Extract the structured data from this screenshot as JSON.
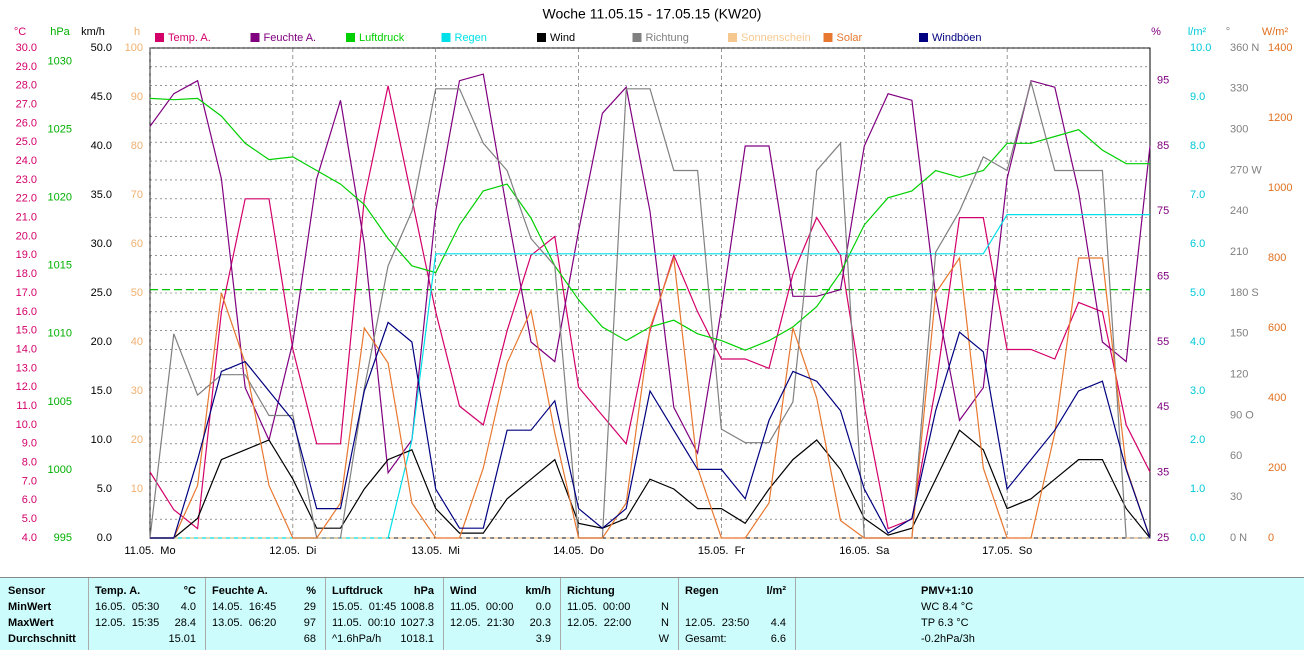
{
  "chart_data": {
    "type": "line",
    "title": "Woche 11.05.15 - 17.05.15 (KW20)",
    "xlim": [
      0,
      168
    ],
    "xticks": [
      {
        "value": 0,
        "label": "11.05.  Mo"
      },
      {
        "value": 24,
        "label": "12.05.  Di"
      },
      {
        "value": 48,
        "label": "13.05.  Mi"
      },
      {
        "value": 72,
        "label": "14.05.  Do"
      },
      {
        "value": 96,
        "label": "15.05.  Fr"
      },
      {
        "value": 120,
        "label": "16.05.  Sa"
      },
      {
        "value": 144,
        "label": "17.05.  So"
      }
    ],
    "x": [
      0,
      4,
      8,
      12,
      16,
      20,
      24,
      28,
      32,
      36,
      40,
      44,
      48,
      52,
      56,
      60,
      64,
      68,
      72,
      76,
      80,
      84,
      88,
      92,
      96,
      100,
      104,
      108,
      112,
      116,
      120,
      124,
      128,
      132,
      136,
      140,
      144,
      148,
      152,
      156,
      160,
      164,
      168
    ],
    "axes": [
      {
        "unit": "°C",
        "color": "#d4006a",
        "lim": [
          4,
          30
        ],
        "ticks": [
          {
            "value": 4,
            "label": "4.0"
          },
          {
            "value": 5,
            "label": "5.0"
          },
          {
            "value": 6,
            "label": "6.0"
          },
          {
            "value": 7,
            "label": "7.0"
          },
          {
            "value": 8,
            "label": "8.0"
          },
          {
            "value": 9,
            "label": "9.0"
          },
          {
            "value": 10,
            "label": "10.0"
          },
          {
            "value": 11,
            "label": "11.0"
          },
          {
            "value": 12,
            "label": "12.0"
          },
          {
            "value": 13,
            "label": "13.0"
          },
          {
            "value": 14,
            "label": "14.0"
          },
          {
            "value": 15,
            "label": "15.0"
          },
          {
            "value": 16,
            "label": "16.0"
          },
          {
            "value": 17,
            "label": "17.0"
          },
          {
            "value": 18,
            "label": "18.0"
          },
          {
            "value": 19,
            "label": "19.0"
          },
          {
            "value": 20,
            "label": "20.0"
          },
          {
            "value": 21,
            "label": "21.0"
          },
          {
            "value": 22,
            "label": "22.0"
          },
          {
            "value": 23,
            "label": "23.0"
          },
          {
            "value": 24,
            "label": "24.0"
          },
          {
            "value": 25,
            "label": "25.0"
          },
          {
            "value": 26,
            "label": "26.0"
          },
          {
            "value": 27,
            "label": "27.0"
          },
          {
            "value": 28,
            "label": "28.0"
          },
          {
            "value": 29,
            "label": "29.0"
          },
          {
            "value": 30,
            "label": "30.0"
          }
        ]
      },
      {
        "unit": "hPa",
        "color": "#00b000",
        "lim": [
          995,
          1031
        ],
        "ticks": [
          995,
          1000,
          1005,
          1010,
          1015,
          1020,
          1025,
          1030
        ]
      },
      {
        "unit": "km/h",
        "color": "#000000",
        "lim": [
          0,
          50
        ],
        "ticks": [
          {
            "value": 0,
            "label": "0.0"
          },
          {
            "value": 5,
            "label": "5.0"
          },
          {
            "value": 10,
            "label": "10.0"
          },
          {
            "value": 15,
            "label": "15.0"
          },
          {
            "value": 20,
            "label": "20.0"
          },
          {
            "value": 25,
            "label": "25.0"
          },
          {
            "value": 30,
            "label": "30.0"
          },
          {
            "value": 35,
            "label": "35.0"
          },
          {
            "value": 40,
            "label": "40.0"
          },
          {
            "value": 45,
            "label": "45.0"
          },
          {
            "value": 50,
            "label": "50.0"
          }
        ]
      },
      {
        "unit": "h",
        "color": "#f0b070",
        "lim": [
          0,
          100
        ],
        "ticks": [
          10,
          20,
          30,
          40,
          50,
          60,
          70,
          80,
          90,
          100
        ]
      },
      {
        "unit": "%",
        "color": "#800080",
        "lim": [
          25,
          100
        ],
        "ticks": [
          25,
          35,
          45,
          55,
          65,
          75,
          85,
          95
        ]
      },
      {
        "unit": "l/m²",
        "color": "#00c8d8",
        "lim": [
          0,
          10
        ],
        "ticks": [
          {
            "value": 0,
            "label": "0.0"
          },
          {
            "value": 1,
            "label": "1.0"
          },
          {
            "value": 2,
            "label": "2.0"
          },
          {
            "value": 3,
            "label": "3.0"
          },
          {
            "value": 4,
            "label": "4.0"
          },
          {
            "value": 5,
            "label": "5.0"
          },
          {
            "value": 6,
            "label": "6.0"
          },
          {
            "value": 7,
            "label": "7.0"
          },
          {
            "value": 8,
            "label": "8.0"
          },
          {
            "value": 9,
            "label": "9.0"
          },
          {
            "value": 10,
            "label": "10.0"
          }
        ]
      },
      {
        "unit": "°",
        "color": "#808080",
        "lim": [
          0,
          360
        ],
        "ticks": [
          {
            "value": 0,
            "label": "0 N"
          },
          30,
          60,
          {
            "value": 90,
            "label": "90 O"
          },
          120,
          150,
          {
            "value": 180,
            "label": "180 S"
          },
          210,
          240,
          {
            "value": 270,
            "label": "270 W"
          },
          300,
          330,
          {
            "value": 360,
            "label": "360 N"
          }
        ]
      },
      {
        "unit": "W/m²",
        "color": "#e07020",
        "lim": [
          0,
          1400
        ],
        "ticks": [
          0,
          200,
          400,
          600,
          800,
          1000,
          1200,
          1400
        ]
      }
    ],
    "reference": {
      "axis": 1,
      "value": 1013.25,
      "color": "#00c000"
    },
    "series": [
      {
        "name": "Temp. A.",
        "color": "#d4006a",
        "axis": 0,
        "values": [
          7.5,
          5.5,
          4.5,
          16,
          22,
          22,
          14,
          9,
          9,
          22,
          28,
          22,
          16,
          11,
          10,
          15,
          19,
          20,
          12,
          10.5,
          9,
          15,
          19,
          16,
          13.5,
          13.5,
          13,
          18,
          21,
          19,
          11,
          4.5,
          5,
          12,
          21,
          21,
          14,
          14,
          13.5,
          16.5,
          16,
          10,
          7.5
        ]
      },
      {
        "name": "Feuchte A.",
        "color": "#800080",
        "axis": 4,
        "values": [
          88,
          93,
          95,
          80,
          48,
          40,
          55,
          80,
          92,
          70,
          35,
          40,
          75,
          95,
          96,
          75,
          55,
          52,
          72,
          90,
          94,
          75,
          45,
          38,
          60,
          85,
          85,
          62,
          62,
          63,
          85,
          93,
          92,
          62,
          43,
          48,
          80,
          95,
          94,
          78,
          55,
          52,
          85
        ]
      },
      {
        "name": "Luftdruck",
        "color": "#00d000",
        "axis": 1,
        "values": [
          1027.3,
          1027.2,
          1027.3,
          1026,
          1024,
          1022.8,
          1023,
          1022,
          1021,
          1019.5,
          1017,
          1015,
          1014.5,
          1018,
          1020.5,
          1021,
          1018.5,
          1015,
          1012.5,
          1010.5,
          1009.5,
          1010.5,
          1011,
          1010,
          1009.5,
          1008.8,
          1009.5,
          1010.5,
          1012,
          1014.5,
          1018,
          1020,
          1020.5,
          1022,
          1021.5,
          1022,
          1024,
          1024,
          1024.5,
          1025,
          1023.5,
          1022.5,
          1022.5
        ]
      },
      {
        "name": "Regen",
        "color": "#00e0e8",
        "axis": 5,
        "values": [
          0,
          0,
          0,
          0,
          0,
          0,
          0,
          0,
          0,
          0,
          0,
          2,
          5.8,
          5.8,
          5.8,
          5.8,
          5.8,
          5.8,
          5.8,
          5.8,
          5.8,
          5.8,
          5.8,
          5.8,
          5.8,
          5.8,
          5.8,
          5.8,
          5.8,
          5.8,
          5.8,
          5.8,
          5.8,
          5.8,
          5.8,
          5.8,
          6.6,
          6.6,
          6.6,
          6.6,
          6.6,
          6.6,
          6.6
        ]
      },
      {
        "name": "Wind",
        "color": "#000000",
        "axis": 2,
        "values": [
          0,
          0,
          2,
          8,
          9,
          10,
          6,
          1,
          1,
          5,
          8,
          9,
          3,
          0.5,
          0.5,
          4,
          6,
          8,
          1.5,
          1,
          2,
          6,
          5,
          3,
          3,
          1.5,
          5,
          8,
          10,
          7,
          2,
          0.3,
          1,
          6,
          11,
          9,
          3,
          4,
          6,
          8,
          8,
          3,
          0
        ]
      },
      {
        "name": "Richtung",
        "color": "#808080",
        "axis": 6,
        "values": [
          0,
          150,
          105,
          120,
          120,
          90,
          90,
          0,
          0,
          110,
          200,
          240,
          330,
          330,
          290,
          270,
          220,
          200,
          0,
          0,
          330,
          330,
          270,
          270,
          80,
          70,
          70,
          100,
          270,
          290,
          0,
          0,
          0,
          210,
          240,
          280,
          270,
          335,
          270,
          270,
          270,
          0,
          0
        ]
      },
      {
        "name": "Sonnenschein",
        "color": "#f5c890",
        "axis": 3,
        "values": [
          0,
          0,
          0,
          0,
          0,
          0,
          0,
          0,
          0,
          0,
          0,
          0,
          0,
          0,
          0,
          0,
          0,
          0,
          0,
          0,
          0,
          0,
          0,
          0,
          0,
          0,
          0,
          0,
          0,
          0,
          0,
          0,
          0,
          0,
          0,
          0,
          0,
          0,
          0,
          0,
          0,
          0,
          0
        ]
      },
      {
        "name": "Solar",
        "color": "#e87830",
        "axis": 7,
        "values": [
          0,
          0,
          150,
          700,
          500,
          150,
          0,
          0,
          100,
          600,
          500,
          100,
          0,
          0,
          200,
          500,
          650,
          300,
          0,
          0,
          100,
          600,
          800,
          200,
          0,
          0,
          100,
          600,
          400,
          50,
          0,
          0,
          0,
          700,
          800,
          200,
          0,
          0,
          300,
          800,
          800,
          200,
          0
        ]
      },
      {
        "name": "Windböen",
        "color": "#000080",
        "axis": 2,
        "values": [
          0,
          0,
          8,
          17,
          18,
          15,
          12,
          3,
          3,
          15,
          22,
          20,
          5,
          1,
          1,
          11,
          11,
          14,
          3,
          1,
          3,
          15,
          11,
          7,
          7,
          4,
          12,
          17,
          16,
          13,
          5,
          0.5,
          2,
          13,
          21,
          19,
          5,
          8,
          11,
          15,
          16,
          7,
          0
        ]
      }
    ]
  },
  "table": {
    "row_labels": [
      "Sensor",
      "MinWert",
      "MaxWert",
      "Durchschnitt"
    ],
    "groups": [
      {
        "title": "Temp. A.",
        "unit": "°C",
        "rows": [
          [
            "16.05.  05:30",
            "4.0"
          ],
          [
            "12.05.  15:35",
            "28.4"
          ],
          [
            "15.01"
          ]
        ]
      },
      {
        "title": "Feuchte A.",
        "unit": "%",
        "rows": [
          [
            "14.05.  16:45",
            "29"
          ],
          [
            "13.05.  06:20",
            "97"
          ],
          [
            "68"
          ]
        ]
      },
      {
        "title": "Luftdruck",
        "unit": "hPa",
        "rows": [
          [
            "15.05.  01:45",
            "1008.8"
          ],
          [
            "11.05.  00:10",
            "1027.3"
          ],
          [
            "^1.6hPa/h",
            "1018.1"
          ]
        ]
      },
      {
        "title": "Wind",
        "unit": "km/h",
        "rows": [
          [
            "11.05.  00:00",
            "0.0"
          ],
          [
            "12.05.  21:30",
            "20.3"
          ],
          [
            "3.9"
          ]
        ]
      },
      {
        "title": "Richtung",
        "unit": "",
        "rows": [
          [
            "11.05.  00:00",
            "N"
          ],
          [
            "12.05.  22:00",
            "N"
          ],
          [
            "W"
          ]
        ]
      },
      {
        "title": "Regen",
        "unit": "l/m²",
        "rows": [
          [],
          [
            "12.05.  23:50",
            "4.4"
          ],
          [
            "Gesamt:",
            "6.6"
          ]
        ]
      }
    ],
    "pmv": [
      "PMV+1:10",
      "WC 8.4 °C",
      "TP 6.3 °C",
      "-0.2hPa/3h"
    ]
  }
}
